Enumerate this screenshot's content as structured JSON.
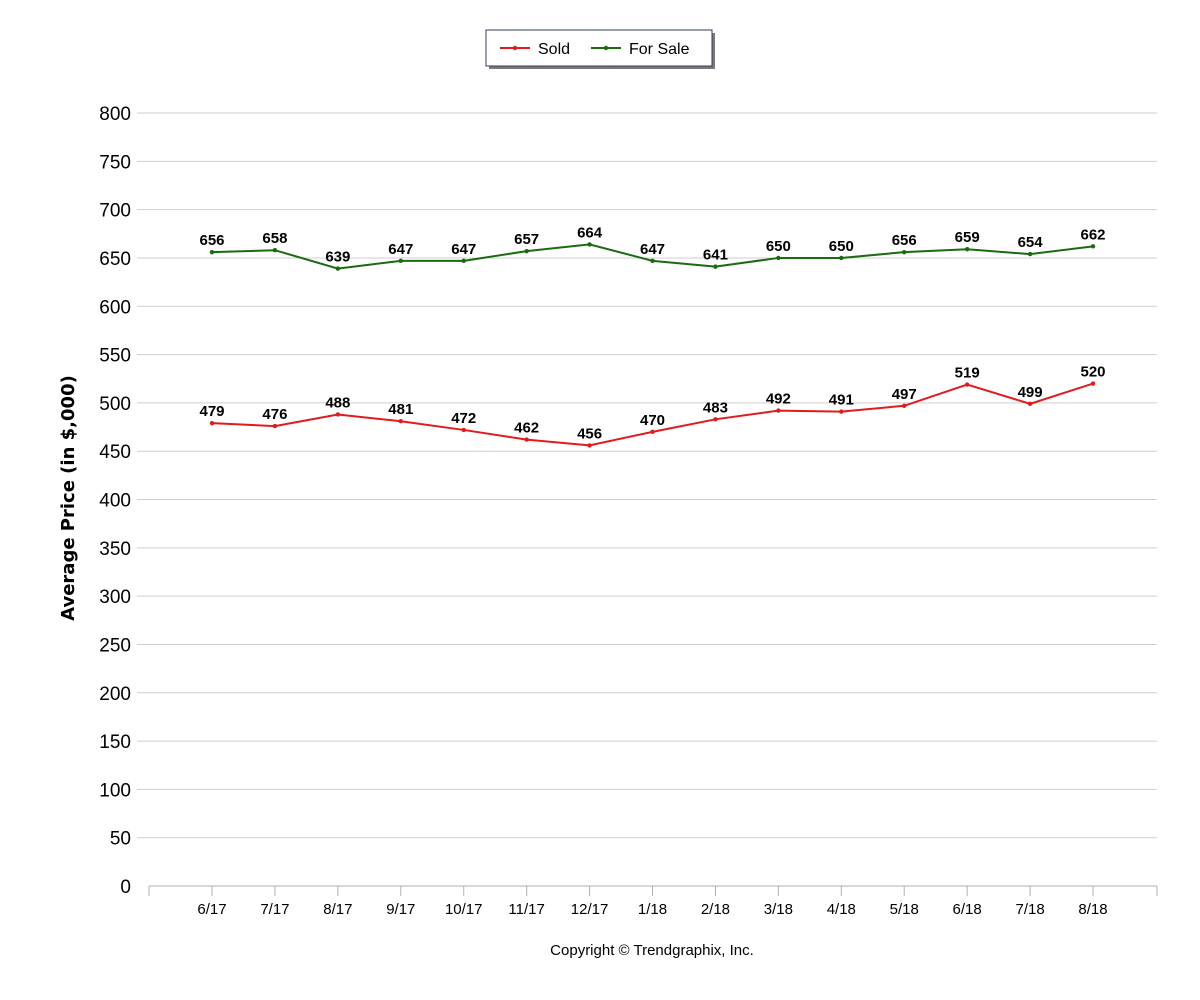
{
  "chart_data": {
    "type": "line",
    "title": "",
    "xlabel": "",
    "ylabel": "Average Price (in $,000)",
    "ylim": [
      0,
      800
    ],
    "yticks": [
      "0",
      "50",
      "100",
      "150",
      "200",
      "250",
      "300",
      "350",
      "400",
      "450",
      "500",
      "550",
      "600",
      "650",
      "700",
      "750",
      "800"
    ],
    "grid": true,
    "legend": "top-center",
    "categories": [
      "6/17",
      "7/17",
      "8/17",
      "9/17",
      "10/17",
      "11/17",
      "12/17",
      "1/18",
      "2/18",
      "3/18",
      "4/18",
      "5/18",
      "6/18",
      "7/18",
      "8/18"
    ],
    "series": [
      {
        "name": "Sold",
        "color": "#e31a1c",
        "values": [
          479,
          476,
          488,
          481,
          472,
          462,
          456,
          470,
          483,
          492,
          491,
          497,
          519,
          499,
          520
        ]
      },
      {
        "name": "For Sale",
        "color": "#1a6b10",
        "values": [
          656,
          658,
          639,
          647,
          647,
          657,
          664,
          647,
          641,
          650,
          650,
          656,
          659,
          654,
          662
        ]
      }
    ],
    "footer": "Copyright © Trendgraphix, Inc."
  }
}
